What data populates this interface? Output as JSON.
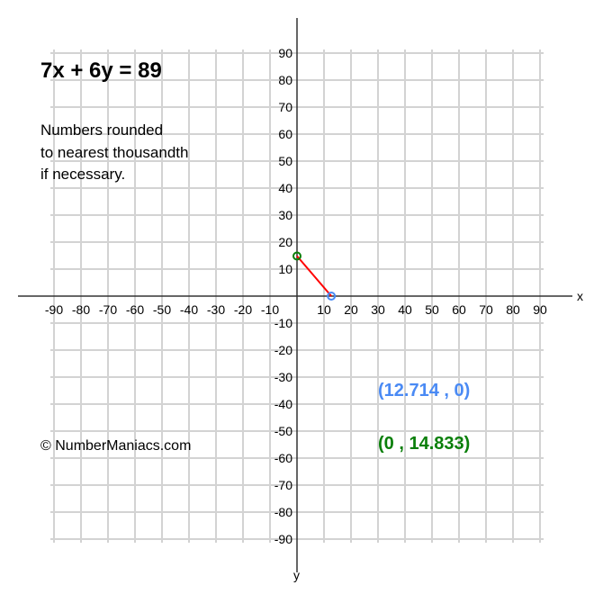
{
  "chart_data": {
    "type": "line",
    "title": "7x + 6y = 89",
    "subtitle_lines": [
      "Numbers rounded",
      "to nearest thousandth",
      "if necessary."
    ],
    "copyright": "© NumberManiacs.com",
    "xlabel": "x",
    "ylabel": "y",
    "xlim": [
      -100,
      100
    ],
    "ylim": [
      -100,
      100
    ],
    "grid": true,
    "grid_step": 10,
    "xticks": [
      -90,
      -80,
      -70,
      -60,
      -50,
      -40,
      -30,
      -20,
      -10,
      10,
      20,
      30,
      40,
      50,
      60,
      70,
      80,
      90
    ],
    "yticks": [
      90,
      80,
      70,
      60,
      50,
      40,
      30,
      20,
      10,
      -10,
      -20,
      -30,
      -40,
      -50,
      -60,
      -70,
      -80,
      -90
    ],
    "segment": {
      "x": [
        0,
        12.714
      ],
      "y": [
        14.833,
        0
      ],
      "color": "#ff0000"
    },
    "points": [
      {
        "x": 12.714,
        "y": 0,
        "label": "(12.714 , 0)",
        "color": "#4a8af4"
      },
      {
        "x": 0,
        "y": 14.833,
        "label": "(0 , 14.833)",
        "color": "#0a7f0a"
      }
    ]
  }
}
